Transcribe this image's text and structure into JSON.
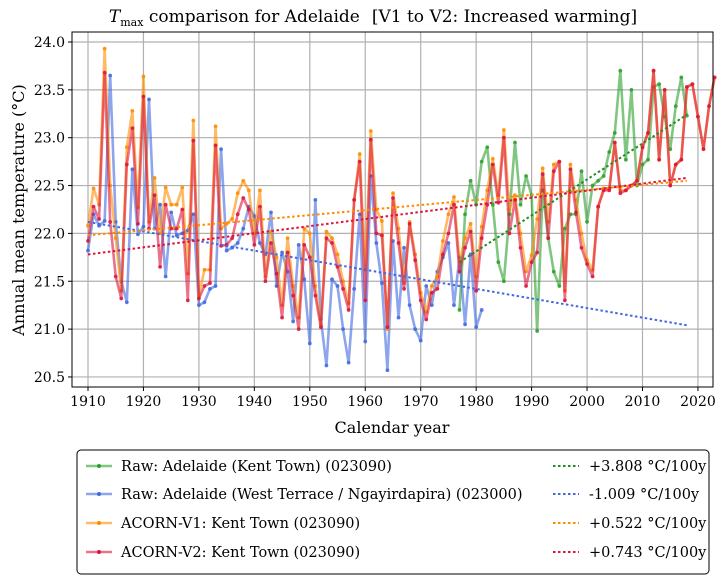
{
  "chart_data": {
    "type": "line",
    "title": {
      "main_symbol": "T",
      "main_subscript": "max",
      "text": " comparison for Adelaide",
      "suffix": "[V1 to V2: Increased warming]"
    },
    "xlabel": "Calendar year",
    "ylabel": "Annual mean temperature (°C)",
    "xlim": [
      1907,
      2023
    ],
    "ylim": [
      20.4,
      24.07
    ],
    "xticks": [
      1910,
      1920,
      1930,
      1940,
      1950,
      1960,
      1970,
      1980,
      1990,
      2000,
      2010,
      2020
    ],
    "yticks": [
      20.5,
      21.0,
      21.5,
      22.0,
      22.5,
      23.0,
      23.5,
      24.0
    ],
    "ytick_labels": [
      "20.5",
      "21.0",
      "21.5",
      "22.0",
      "22.5",
      "23.0",
      "23.5",
      "24.0"
    ],
    "grid": true,
    "legend_position": "below",
    "series": [
      {
        "name": "Raw: Adelaide (Kent Town) (023090)",
        "color": "#2ca02c",
        "start_year": 1977,
        "values": [
          21.2,
          22.2,
          22.55,
          22.3,
          22.75,
          22.9,
          22.3,
          21.7,
          21.5,
          22.2,
          22.95,
          22.3,
          22.6,
          22.4,
          20.98,
          22.45,
          21.95,
          21.6,
          21.45,
          22.05,
          22.2,
          22.2,
          22.65,
          22.12,
          22.5,
          22.55,
          22.6,
          22.85,
          23.05,
          23.7,
          22.77,
          23.5,
          22.5,
          22.72,
          22.77,
          23.53,
          23.56,
          23.22,
          22.88,
          23.33,
          23.63,
          23.23
        ]
      },
      {
        "name": "Raw: Adelaide (West Terrace / Ngayirdapira) (023000)",
        "color": "#4169e1",
        "start_year": 1910,
        "values": [
          21.82,
          22.2,
          22.08,
          22.13,
          23.65,
          22.12,
          21.5,
          21.28,
          22.67,
          21.99,
          22.07,
          23.4,
          22.05,
          22.3,
          21.55,
          22.22,
          21.98,
          22.0,
          22.03,
          22.2,
          21.25,
          21.28,
          21.42,
          21.45,
          22.88,
          21.82,
          21.85,
          21.9,
          22.05,
          22.28,
          22.18,
          21.9,
          21.78,
          22.22,
          21.45,
          21.8,
          21.6,
          21.08,
          21.88,
          21.52,
          20.85,
          22.35,
          21.1,
          20.62,
          21.52,
          21.45,
          21.0,
          20.65,
          21.42,
          22.2,
          20.87,
          22.6,
          21.9,
          21.48,
          20.57,
          21.92,
          21.12,
          21.85,
          21.25,
          21.0,
          20.88,
          21.45,
          21.25,
          21.6,
          21.75,
          21.9,
          21.25,
          21.75,
          21.05,
          21.78,
          21.02,
          21.2
        ]
      },
      {
        "name": "ACORN-V1: Kent Town (023090)",
        "color": "#ff8c00",
        "start_year": 1910,
        "values": [
          22.08,
          22.47,
          22.3,
          23.93,
          22.5,
          21.95,
          21.4,
          22.9,
          23.28,
          22.27,
          23.64,
          22.12,
          22.58,
          22.0,
          22.48,
          22.3,
          22.3,
          22.48,
          21.58,
          23.18,
          21.35,
          21.62,
          21.62,
          23.12,
          22.05,
          22.1,
          22.15,
          22.42,
          22.55,
          22.45,
          22.0,
          22.45,
          21.55,
          22.02,
          21.75,
          21.25,
          21.95,
          21.45,
          21.12,
          22.05,
          22.0,
          21.45,
          21.05,
          22.02,
          21.95,
          21.78,
          21.5,
          21.27,
          22.35,
          22.83,
          21.62,
          23.07,
          22.25,
          22.13,
          21.0,
          22.42,
          22.05,
          21.48,
          22.12,
          21.78,
          21.38,
          21.18,
          21.45,
          21.55,
          21.92,
          22.2,
          22.38,
          21.7,
          21.95,
          22.1,
          21.55,
          22.07,
          22.45,
          22.78,
          22.4,
          23.08,
          22.25,
          22.4,
          22.0,
          21.6,
          21.77,
          22.15,
          22.68,
          22.12,
          22.72,
          22.75,
          21.4,
          22.72,
          22.35,
          22.0,
          21.72,
          21.62,
          22.28,
          22.47,
          22.47,
          22.95,
          22.45,
          22.45,
          22.5,
          22.55,
          22.9,
          23.05,
          23.7,
          22.77,
          23.5,
          22.5,
          22.72,
          22.77,
          23.53,
          23.56,
          23.22,
          22.88,
          23.33,
          23.63
        ]
      },
      {
        "name": "ACORN-V2: Kent Town (023090)",
        "color": "#dc143c",
        "start_year": 1910,
        "values": [
          21.92,
          22.28,
          22.15,
          23.68,
          22.12,
          21.55,
          21.32,
          22.72,
          23.1,
          22.1,
          23.43,
          22.05,
          22.4,
          21.65,
          22.3,
          22.05,
          22.05,
          22.25,
          21.3,
          22.97,
          21.32,
          21.45,
          21.48,
          22.92,
          21.87,
          21.88,
          21.95,
          22.2,
          22.37,
          22.25,
          21.88,
          22.28,
          21.5,
          21.9,
          21.58,
          21.12,
          21.8,
          21.35,
          21.0,
          21.88,
          21.75,
          21.35,
          21.02,
          21.95,
          21.9,
          21.65,
          21.42,
          21.2,
          22.35,
          22.75,
          21.3,
          22.98,
          22.0,
          21.98,
          21.02,
          22.37,
          21.9,
          21.42,
          22.1,
          21.72,
          21.3,
          21.1,
          21.38,
          21.42,
          21.78,
          22.0,
          22.3,
          21.6,
          21.85,
          22.02,
          21.4,
          21.95,
          22.3,
          22.72,
          22.32,
          23.0,
          22.0,
          22.35,
          21.85,
          21.45,
          21.7,
          21.8,
          22.62,
          21.95,
          22.65,
          22.75,
          21.3,
          22.67,
          22.22,
          21.85,
          21.68,
          21.55,
          22.28,
          22.45,
          22.45,
          22.95,
          22.42,
          22.45,
          22.5,
          22.55,
          22.9,
          23.05,
          23.7,
          22.77,
          23.5,
          22.5,
          22.72,
          22.77,
          23.53,
          23.56,
          23.22,
          22.88,
          23.33,
          23.63
        ]
      }
    ],
    "trends": [
      {
        "label": "+3.808 °C/100y",
        "color": "#228b22",
        "x": [
          1977,
          2018
        ],
        "y": [
          21.7,
          23.24
        ]
      },
      {
        "label": "-1.009 °C/100y",
        "color": "#4169e1",
        "x": [
          1910,
          2018
        ],
        "y": [
          22.12,
          21.04
        ]
      },
      {
        "label": "+0.522 °C/100y",
        "color": "#ff8c00",
        "x": [
          1910,
          2018
        ],
        "y": [
          21.98,
          22.55
        ]
      },
      {
        "label": "+0.743 °C/100y",
        "color": "#dc143c",
        "x": [
          1910,
          2018
        ],
        "y": [
          21.78,
          22.58
        ]
      }
    ]
  }
}
